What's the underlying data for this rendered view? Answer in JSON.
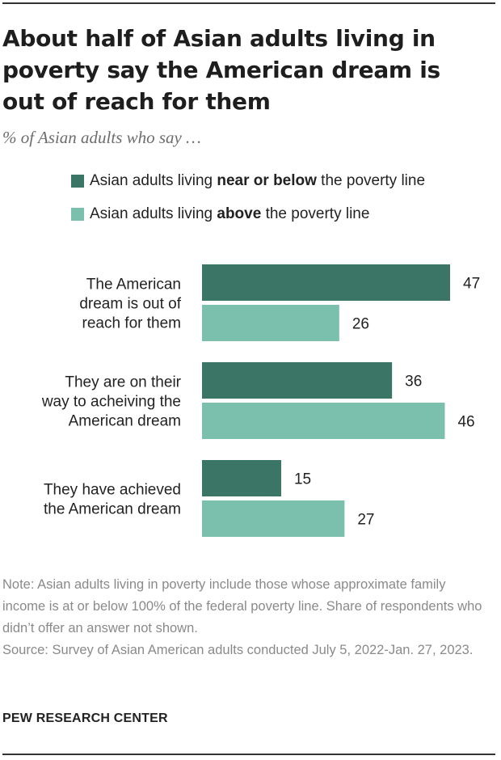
{
  "title": "About half of Asian adults living in poverty say the American dream is out of reach for them",
  "subtitle": "% of Asian adults who say …",
  "legend": [
    {
      "pre": "Asian adults living ",
      "bold": "near or below",
      "post": " the poverty line",
      "color": "#3a7566"
    },
    {
      "pre": "Asian adults living ",
      "bold": "above",
      "post": " the poverty line",
      "color": "#7bbfad"
    }
  ],
  "chart_data": {
    "type": "bar",
    "orientation": "horizontal",
    "categories": [
      [
        "The American",
        "dream is out of",
        "reach for them"
      ],
      [
        "They are on their",
        "way to acheiving the",
        "American dream"
      ],
      [
        "They have achieved",
        "the American dream"
      ]
    ],
    "series": [
      {
        "name": "Asian adults living near or below the poverty line",
        "color": "#3a7566",
        "values": [
          47,
          36,
          15
        ]
      },
      {
        "name": "Asian adults living above the poverty line",
        "color": "#7bbfad",
        "values": [
          26,
          46,
          27
        ]
      }
    ],
    "xlim": [
      0,
      50
    ],
    "grid": false,
    "legend_position": "top"
  },
  "note": "Note: Asian adults living in poverty include those whose approximate family income is at or below 100% of the federal poverty line. Share of respondents who didn’t offer an answer not shown.",
  "source": "Source: Survey of Asian American adults conducted July 5, 2022-Jan. 27, 2023.",
  "footer": "PEW RESEARCH CENTER"
}
